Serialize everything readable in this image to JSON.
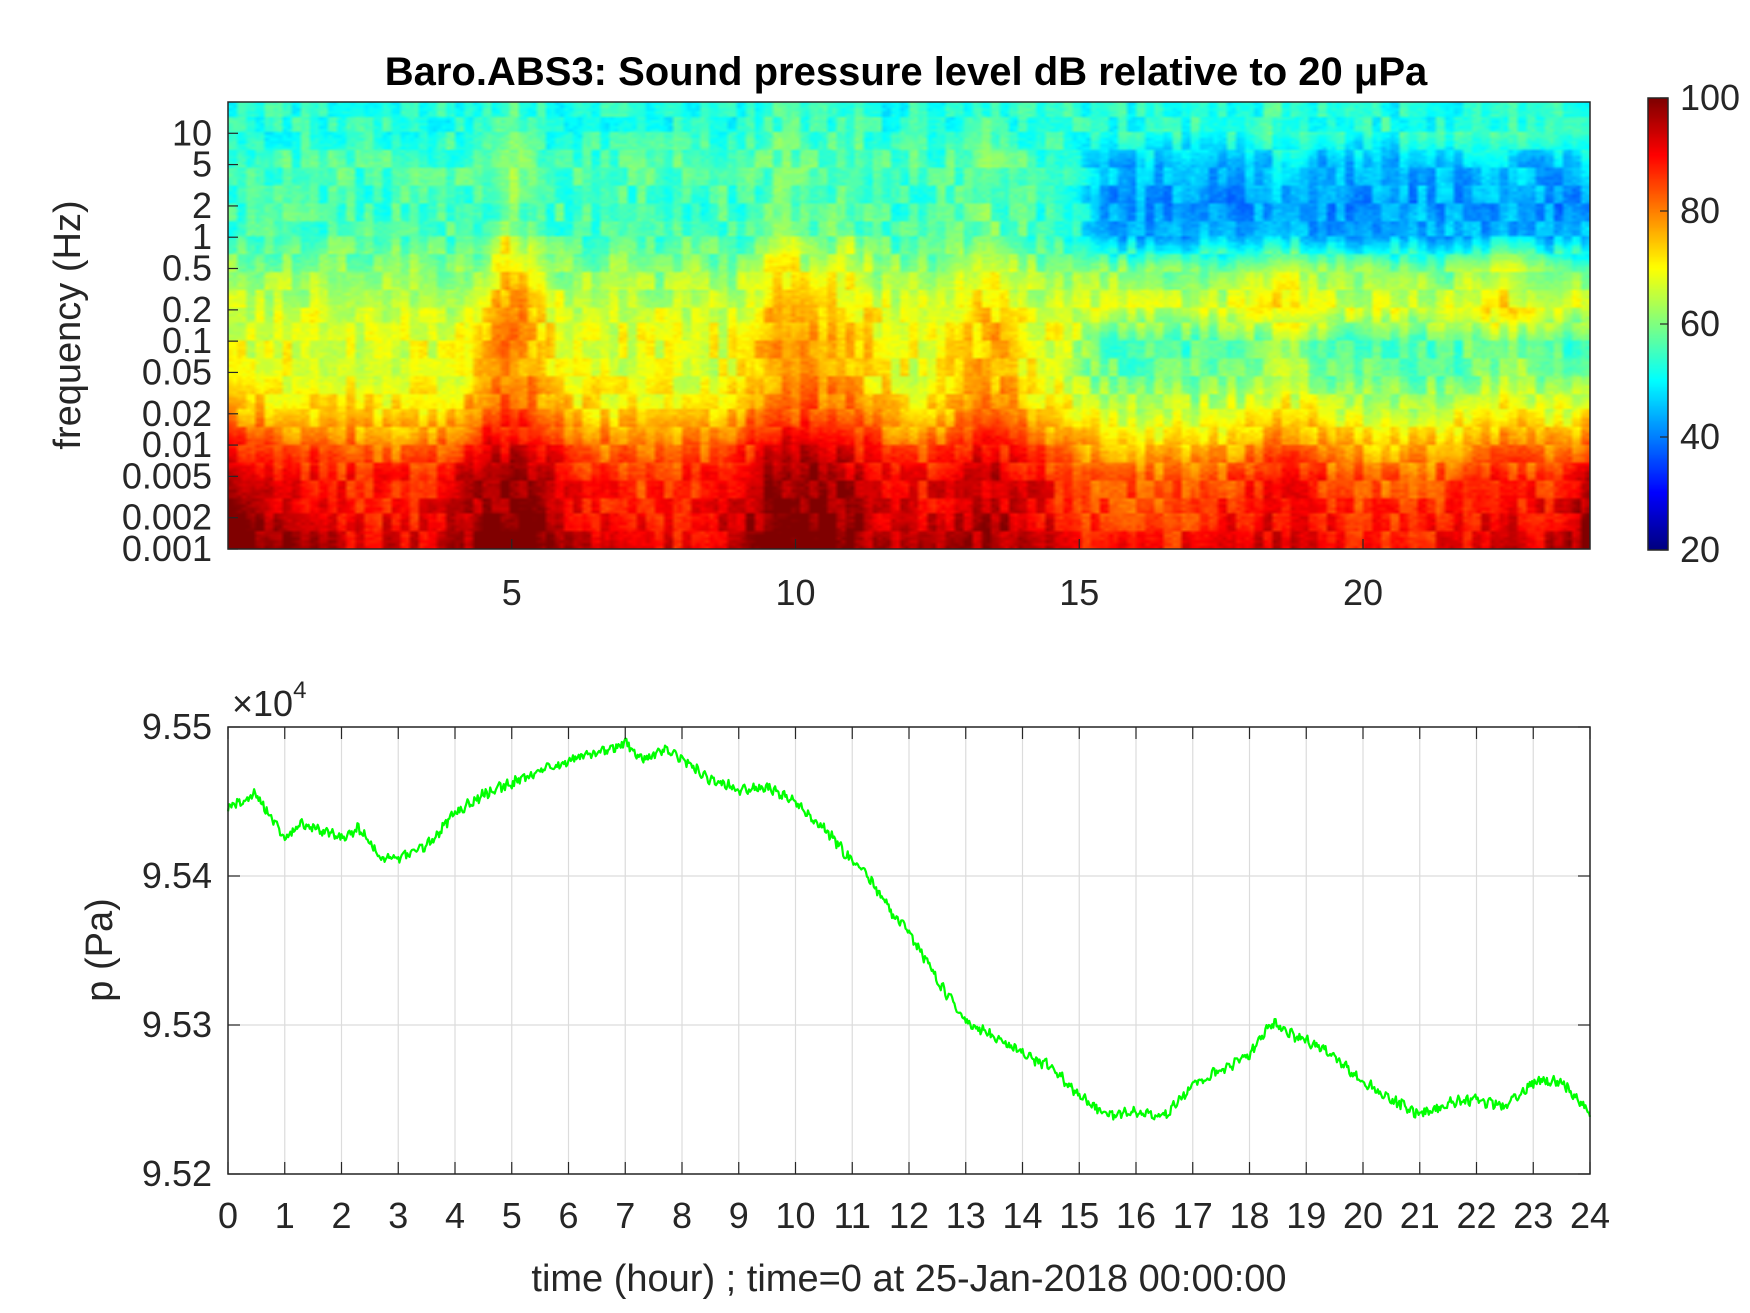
{
  "chart_data": [
    {
      "type": "heatmap",
      "title": "Baro.ABS3: Sound pressure level dB relative to 20 μPa",
      "ylabel": "frequency (Hz)",
      "xlabel": "",
      "y_scale": "log",
      "ylim": [
        0.001,
        20
      ],
      "xlim": [
        0,
        24
      ],
      "y_ticks": [
        0.001,
        0.002,
        0.005,
        0.01,
        0.02,
        0.05,
        0.1,
        0.2,
        0.5,
        1,
        2,
        5,
        10
      ],
      "y_tick_labels": [
        "0.001",
        "0.002",
        "0.005",
        "0.01",
        "0.02",
        "0.05",
        "0.1",
        "0.2",
        "0.5",
        "1",
        "2",
        "5",
        "10"
      ],
      "x_ticks": [
        5,
        10,
        15,
        20
      ],
      "x_tick_labels": [
        "5",
        "10",
        "15",
        "20"
      ],
      "colormap": "jet",
      "colorbar": {
        "range": [
          20,
          100
        ],
        "ticks": [
          20,
          40,
          60,
          80,
          100
        ],
        "tick_labels": [
          "20",
          "40",
          "60",
          "80",
          "100"
        ]
      },
      "spl_profile": {
        "frequencies_hz": [
          0.001,
          0.002,
          0.005,
          0.01,
          0.02,
          0.05,
          0.1,
          0.2,
          0.5,
          1,
          2,
          5,
          10,
          20
        ],
        "level_db_hours_0_15": [
          90,
          87,
          86,
          80,
          72,
          67,
          68,
          66,
          61,
          56,
          55,
          56,
          53,
          52
        ],
        "level_db_hours_15_24": [
          88,
          85,
          82,
          74,
          66,
          57,
          56,
          67,
          60,
          44,
          42,
          45,
          53,
          52
        ]
      },
      "events": [
        {
          "hour": 5.0,
          "boost_db": 12
        },
        {
          "hour": 9.8,
          "boost_db": 10
        },
        {
          "hour": 10.9,
          "boost_db": 7
        },
        {
          "hour": 13.4,
          "boost_db": 8
        },
        {
          "hour": 18.6,
          "boost_db": 6
        },
        {
          "hour": 22.5,
          "boost_db": 5
        }
      ]
    },
    {
      "type": "line",
      "title": "",
      "xlabel": "time (hour) ; time=0 at 25-Jan-2018 00:00:00",
      "ylabel": "p (Pa)",
      "y_multiplier": "×10",
      "y_multiplier_exponent": "4",
      "xlim": [
        0,
        24
      ],
      "ylim": [
        9.52,
        9.55
      ],
      "x_ticks": [
        0,
        1,
        2,
        3,
        4,
        5,
        6,
        7,
        8,
        9,
        10,
        11,
        12,
        13,
        14,
        15,
        16,
        17,
        18,
        19,
        20,
        21,
        22,
        23,
        24
      ],
      "x_tick_labels": [
        "0",
        "1",
        "2",
        "3",
        "4",
        "5",
        "6",
        "7",
        "8",
        "9",
        "10",
        "11",
        "12",
        "13",
        "14",
        "15",
        "16",
        "17",
        "18",
        "19",
        "20",
        "21",
        "22",
        "23",
        "24"
      ],
      "y_ticks": [
        9.52,
        9.53,
        9.54,
        9.55
      ],
      "y_tick_labels": [
        "9.52",
        "9.53",
        "9.54",
        "9.55"
      ],
      "grid": true,
      "series": [
        {
          "color": "#00ff00",
          "x": [
            0,
            0.5,
            1,
            1.3,
            1.5,
            2,
            2.3,
            2.7,
            3,
            3.5,
            4,
            4.5,
            5,
            5.5,
            6,
            6.5,
            7,
            7.3,
            7.7,
            8,
            8.5,
            9,
            9.5,
            10,
            10.5,
            11,
            11.3,
            11.7,
            12,
            12.5,
            13,
            13.5,
            14,
            14.5,
            15,
            15.5,
            16,
            16.5,
            17,
            17.5,
            18,
            18.4,
            18.8,
            19.3,
            20,
            20.5,
            21,
            21.5,
            22,
            22.5,
            23,
            23.5,
            24
          ],
          "y": [
            9.5445,
            9.5455,
            9.5425,
            9.5435,
            9.5433,
            9.5425,
            9.5432,
            9.5412,
            9.5412,
            9.542,
            9.5442,
            9.5455,
            9.5462,
            9.547,
            9.5478,
            9.5482,
            9.549,
            9.5478,
            9.5485,
            9.5478,
            9.5465,
            9.5458,
            9.546,
            9.545,
            9.5432,
            9.541,
            9.5398,
            9.5375,
            9.5362,
            9.533,
            9.5302,
            9.5292,
            9.528,
            9.5272,
            9.5252,
            9.524,
            9.5242,
            9.5238,
            9.526,
            9.527,
            9.528,
            9.5302,
            9.5292,
            9.5285,
            9.5262,
            9.525,
            9.524,
            9.5248,
            9.525,
            9.5245,
            9.5262,
            9.5262,
            9.5242
          ]
        }
      ]
    }
  ]
}
